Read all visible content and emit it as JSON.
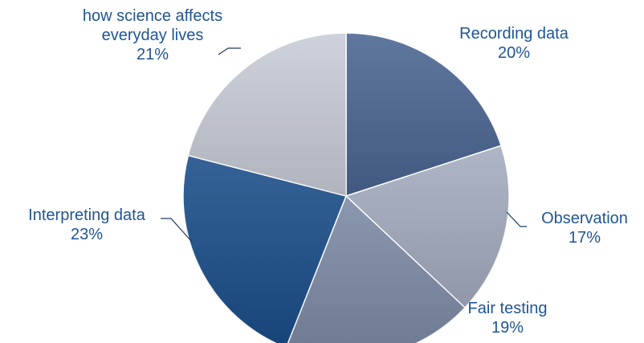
{
  "chart_data": {
    "type": "pie",
    "categories": [
      "Recording data",
      "Observation",
      "Fair testing",
      "Interpreting data",
      "how science affects everyday lives"
    ],
    "values": [
      20,
      17,
      19,
      23,
      21
    ],
    "value_labels": [
      "20%",
      "17%",
      "19%",
      "23%",
      "21%"
    ],
    "colors": [
      "#4a6591",
      "#a3acbf",
      "#7c89a5",
      "#1a4e89",
      "#c8ccd6"
    ]
  }
}
